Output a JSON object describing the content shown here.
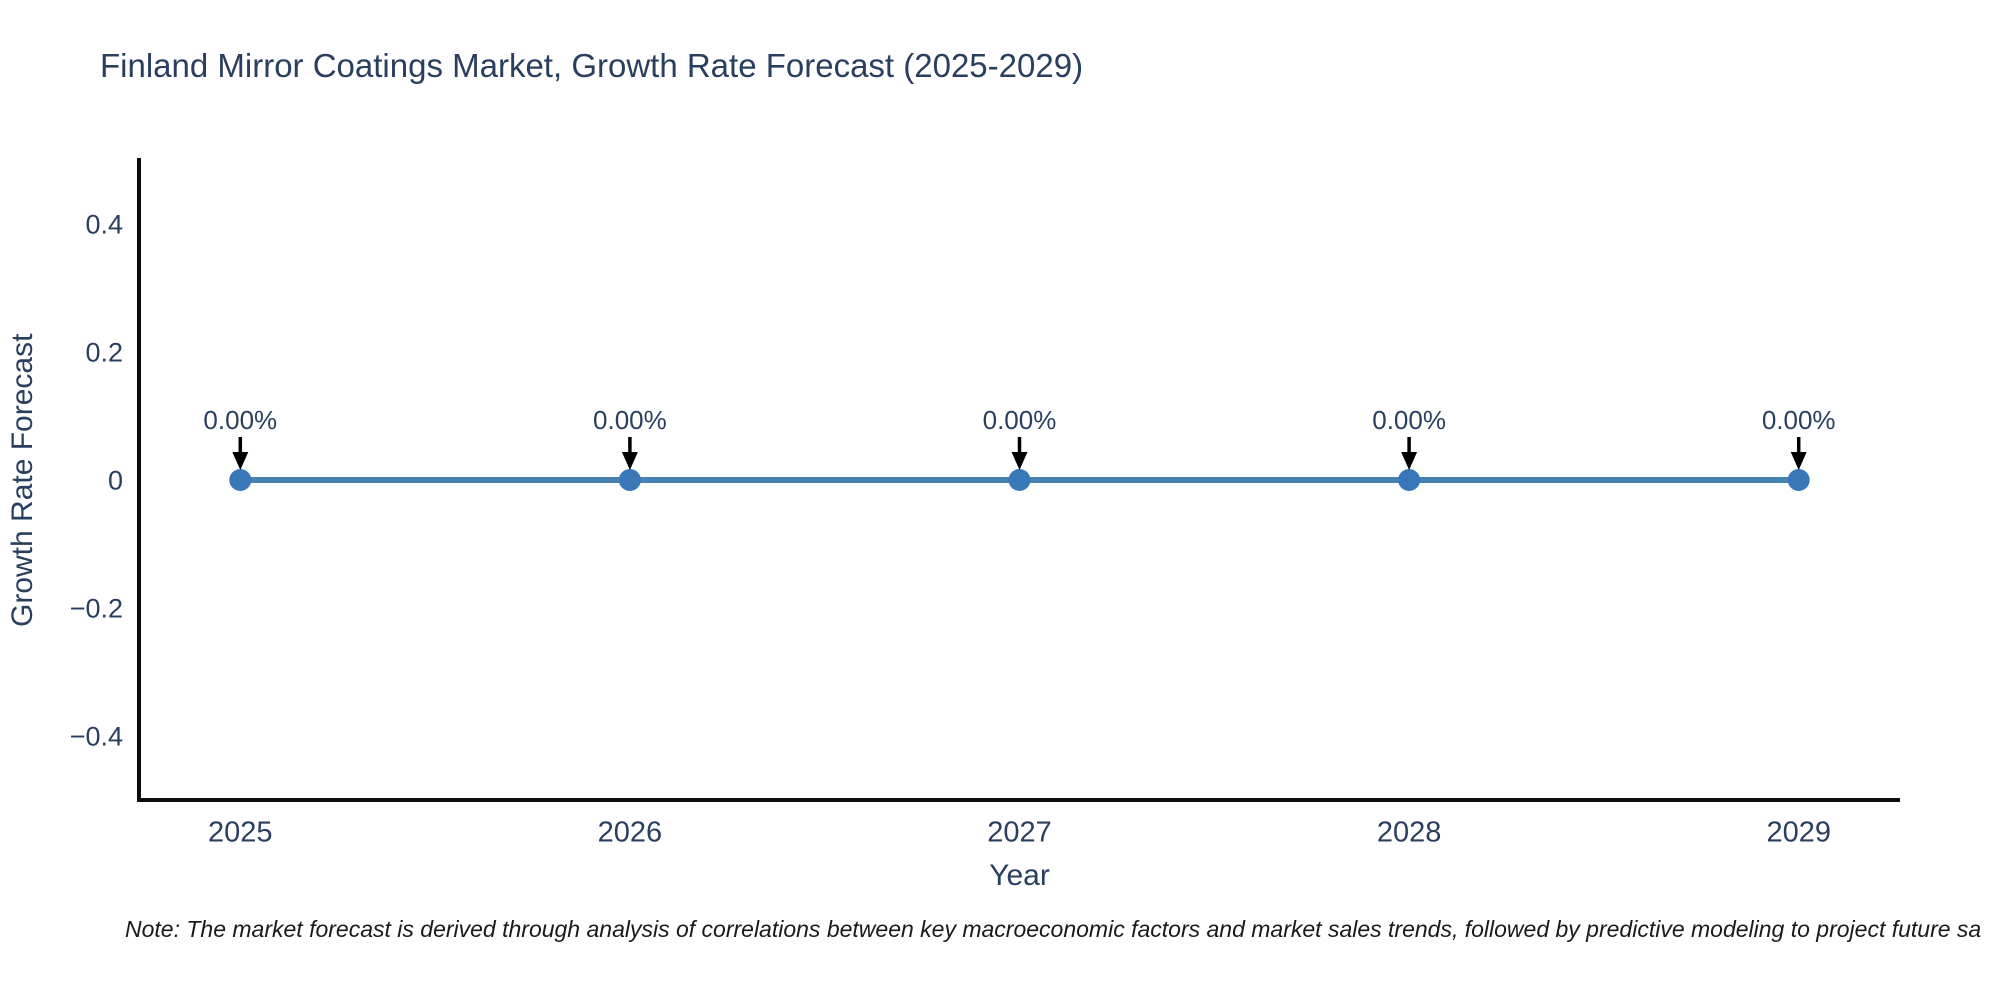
{
  "title": "Finland Mirror Coatings Market, Growth Rate Forecast (2025-2029)",
  "note": "Note: The market forecast is derived through analysis of correlations between key macroeconomic factors and market sales trends, followed by predictive modeling to project future sa",
  "colors": {
    "title_text": "#2a3f5f",
    "axis_text": "#2a3f5f",
    "axis_line": "#0d0d0d",
    "line": "#4682b4",
    "marker": "#3878b8",
    "annotation_text": "#2a3f5f",
    "annotation_arrow": "#000000",
    "background": "#ffffff"
  },
  "chart_data": {
    "type": "line",
    "title": "Finland Mirror Coatings Market, Growth Rate Forecast (2025-2029)",
    "xlabel": "Year",
    "ylabel": "Growth Rate Forecast",
    "x": [
      2025,
      2026,
      2027,
      2028,
      2029
    ],
    "series": [
      {
        "name": "Growth Rate Forecast",
        "values": [
          0,
          0,
          0,
          0,
          0
        ]
      }
    ],
    "point_labels": [
      "0.00%",
      "0.00%",
      "0.00%",
      "0.00%",
      "0.00%"
    ],
    "xlim": [
      2024.74,
      2029.26
    ],
    "ylim": [
      -0.5,
      0.5
    ],
    "xticks": [
      2025,
      2026,
      2027,
      2028,
      2029
    ],
    "xtick_labels": [
      "2025",
      "2026",
      "2027",
      "2028",
      "2029"
    ],
    "yticks": [
      -0.4,
      -0.2,
      0,
      0.2,
      0.4
    ],
    "ytick_labels": [
      "−0.4",
      "−0.2",
      "0",
      "0.2",
      "0.4"
    ],
    "grid": false,
    "legend": "none"
  }
}
